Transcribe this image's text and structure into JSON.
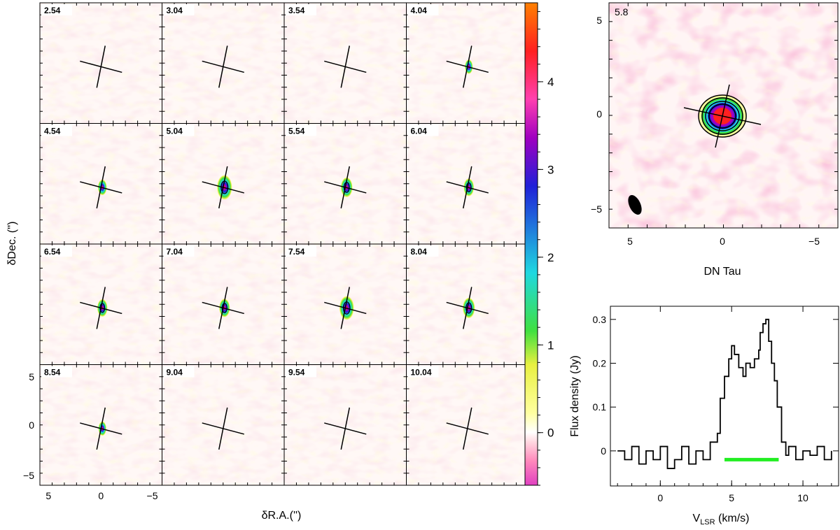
{
  "channel_maps": {
    "channels": [
      "2.54",
      "3.04",
      "3.54",
      "4.04",
      "4.54",
      "5.04",
      "5.54",
      "6.04",
      "6.54",
      "7.04",
      "7.54",
      "8.04",
      "8.54",
      "9.04",
      "9.54",
      "10.04"
    ],
    "signal": [
      0,
      0,
      0,
      0.25,
      0.35,
      1.0,
      0.65,
      0.5,
      0.5,
      0.55,
      0.95,
      0.7,
      0.25,
      0,
      0,
      0
    ],
    "xlabel": "δR.A.('')",
    "ylabel": "δDec. ('')",
    "x_ticks": [
      "5",
      "0",
      "−5"
    ],
    "y_ticks": [
      "5",
      "0",
      "−5"
    ]
  },
  "colorbar": {
    "ticks": [
      "0",
      "1",
      "2",
      "3",
      "4"
    ],
    "range": [
      -0.6,
      4.9
    ],
    "colors": [
      "#e040c0",
      "#ff88bb",
      "#ffd8e0",
      "#ffffff",
      "#ffffa0",
      "#e8f040",
      "#40e040",
      "#20d8e0",
      "#2020d8",
      "#a000c0",
      "#ff3080",
      "#ff2020",
      "#ff8000"
    ]
  },
  "moment_map": {
    "velocity_label": "5.8",
    "source_name": "DN Tau",
    "x_ticks": [
      "5",
      "0",
      "−5"
    ],
    "y_ticks": [
      "5",
      "0",
      "−5"
    ]
  },
  "chart_data": [
    {
      "type": "line",
      "title": "",
      "xlabel": "V",
      "xlabel_sub": "LSR",
      "xlabel_unit": " (km/s)",
      "ylabel": "Flux density (Jy)",
      "xlim": [
        -3.5,
        12.5
      ],
      "ylim": [
        -0.08,
        0.33
      ],
      "x_ticks": [
        "0",
        "5",
        "10"
      ],
      "y_ticks": [
        "0",
        "0.1",
        "0.2",
        "0.3"
      ],
      "series": [
        {
          "x": [
            -3.0,
            -2.5,
            -2.0,
            -1.5,
            -1.0,
            -0.5,
            0.0,
            0.5,
            1.0,
            1.5,
            2.0,
            2.5,
            3.0,
            3.5,
            4.0,
            4.2,
            4.5,
            4.8,
            5.0,
            5.2,
            5.5,
            5.8,
            6.0,
            6.3,
            6.6,
            6.9,
            7.0,
            7.2,
            7.4,
            7.6,
            7.8,
            8.0,
            8.2,
            8.5,
            8.8,
            9.0,
            9.5,
            10.0,
            10.5,
            11.0,
            11.5,
            12.0
          ],
          "y": [
            0.0,
            -0.02,
            0.01,
            -0.03,
            0.0,
            -0.02,
            0.01,
            -0.04,
            -0.02,
            0.01,
            -0.03,
            0.0,
            -0.02,
            0.02,
            0.04,
            0.12,
            0.17,
            0.21,
            0.24,
            0.22,
            0.19,
            0.17,
            0.2,
            0.19,
            0.21,
            0.23,
            0.27,
            0.29,
            0.3,
            0.25,
            0.2,
            0.16,
            0.1,
            0.02,
            -0.01,
            0.01,
            -0.02,
            0.0,
            -0.01,
            0.01,
            -0.02,
            0.0
          ]
        }
      ],
      "velocity_range_bar": [
        4.5,
        8.3
      ],
      "velocity_range_bar_level": -0.02,
      "bar_color": "#22ee22"
    }
  ]
}
